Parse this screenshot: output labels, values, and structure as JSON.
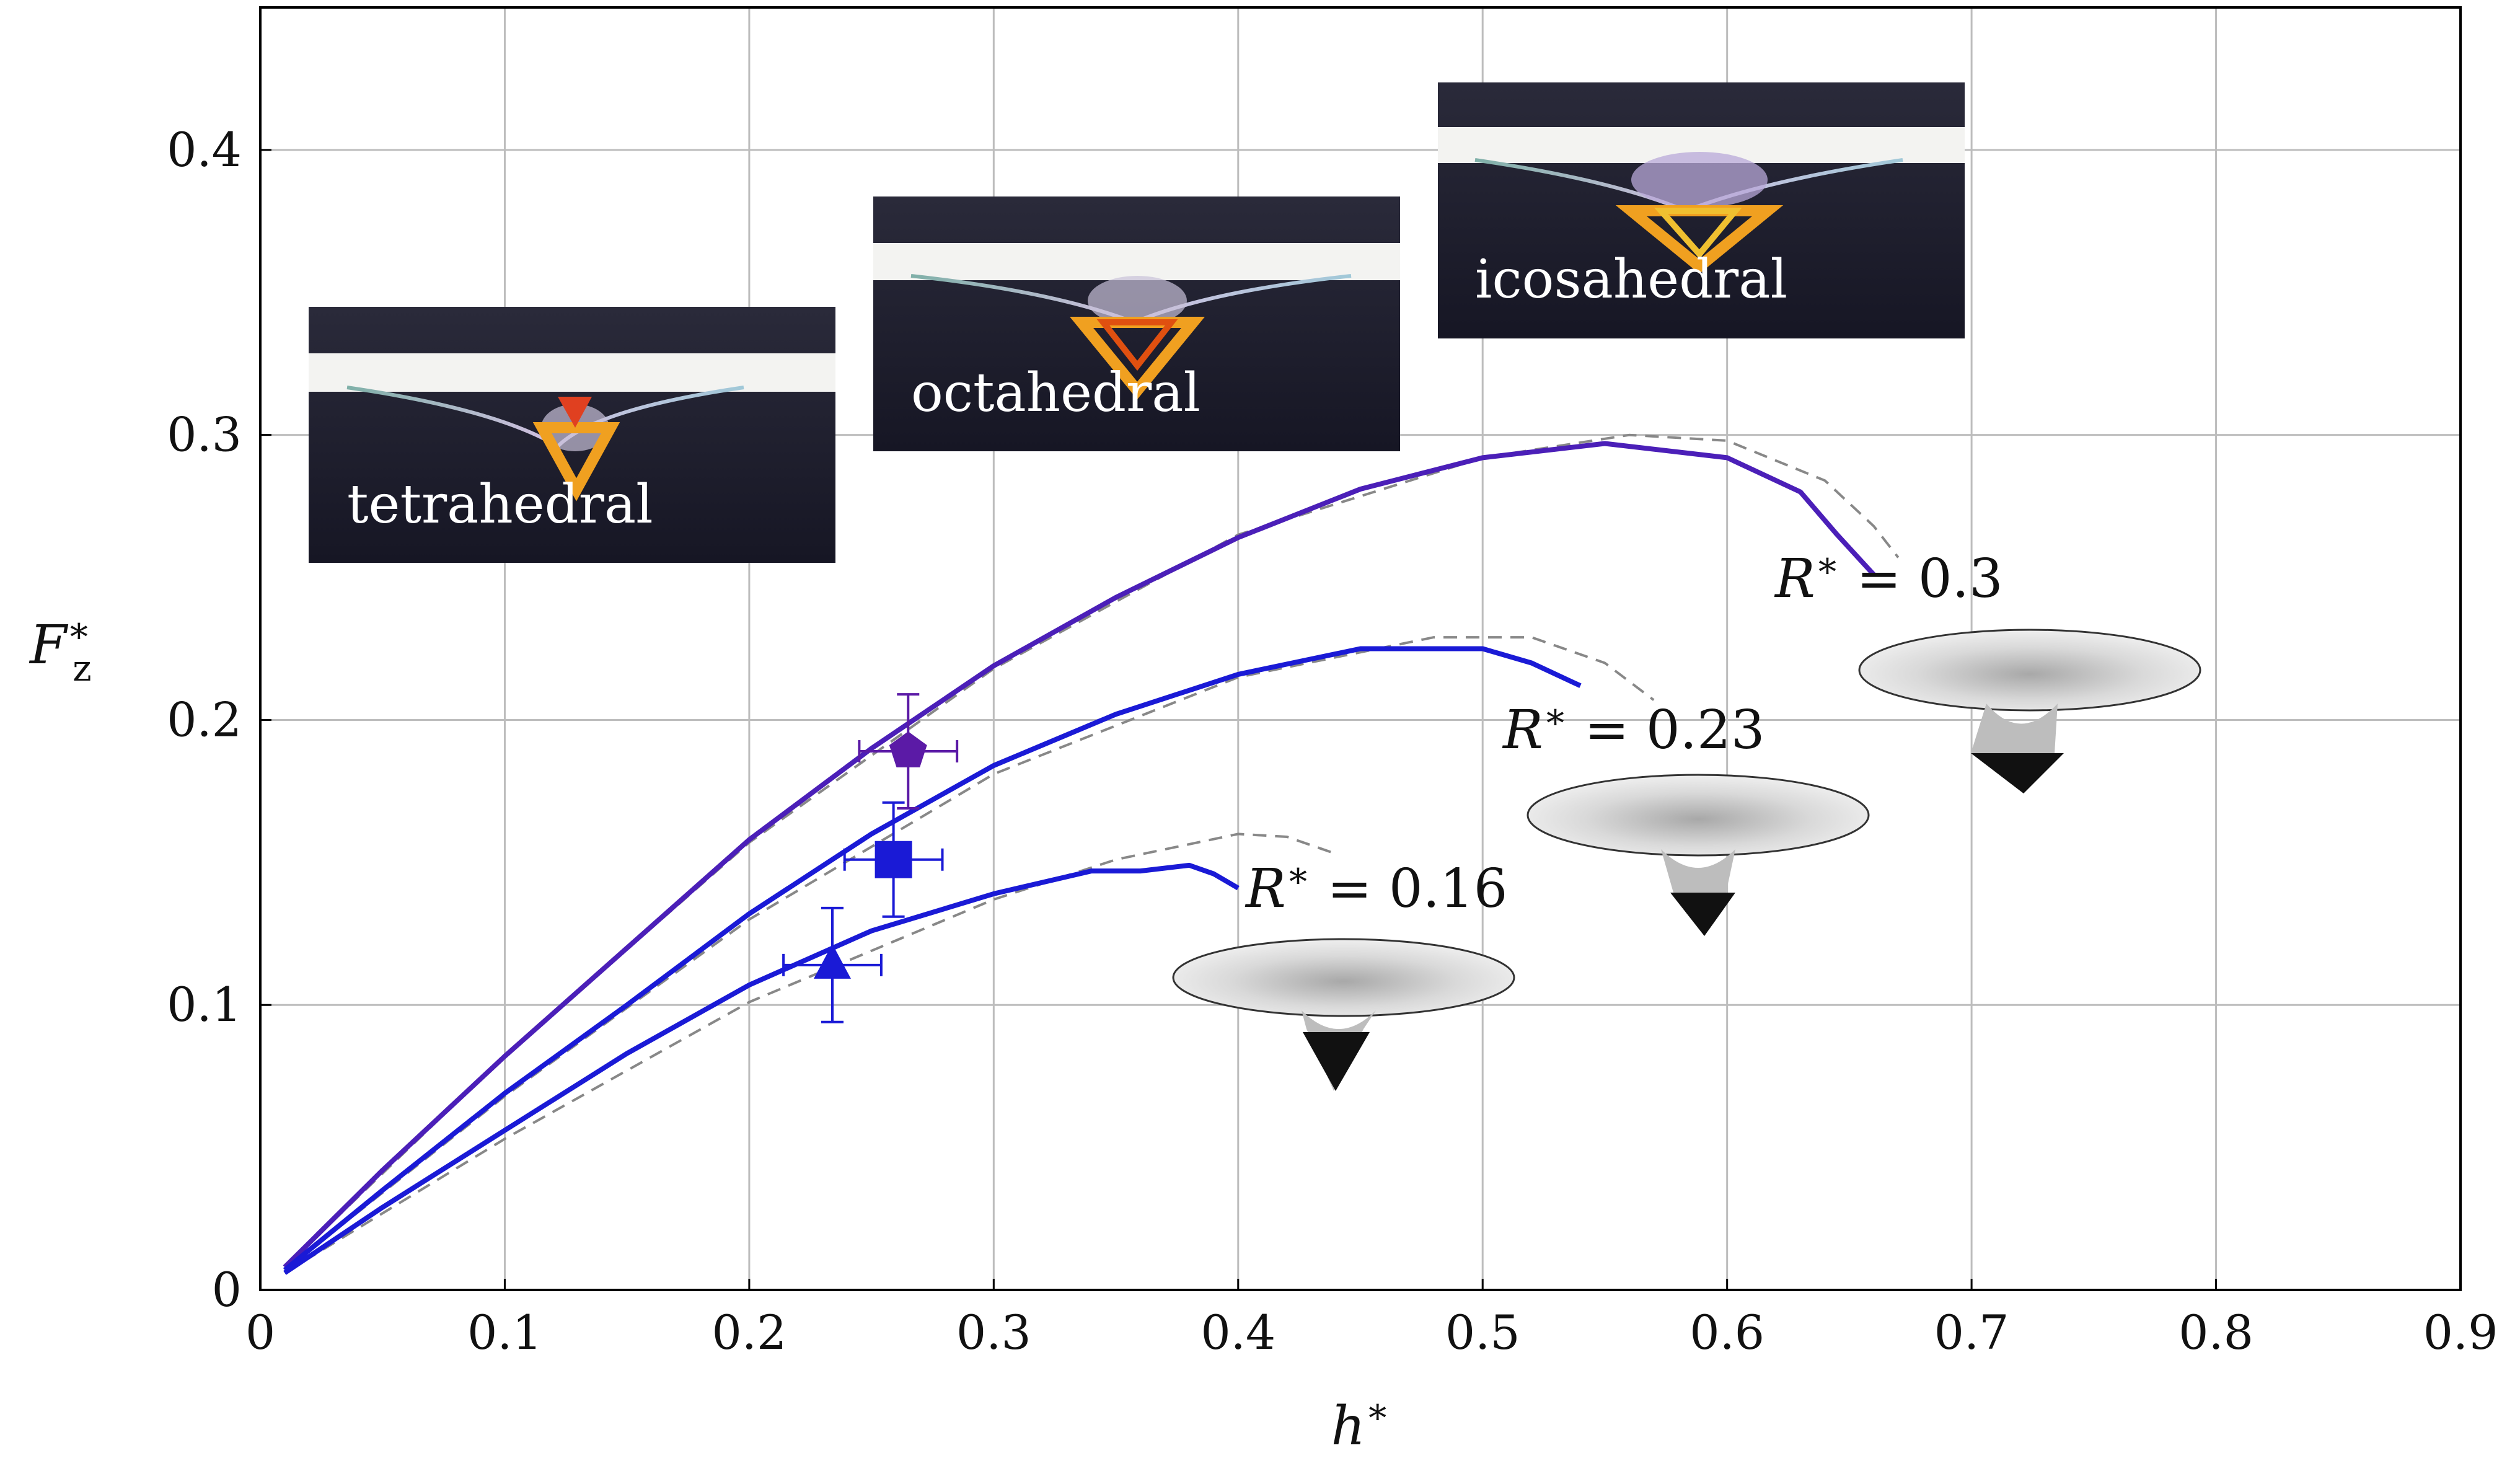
{
  "chart_data": {
    "type": "line",
    "xlabel": "h*",
    "ylabel": "F*z",
    "xlim": [
      0,
      0.9
    ],
    "ylim": [
      0,
      0.45
    ],
    "xticks": [
      "0",
      "0.1",
      "0.2",
      "0.3",
      "0.4",
      "0.5",
      "0.6",
      "0.7",
      "0.8",
      "0.9"
    ],
    "yticks": [
      "0",
      "0.1",
      "0.2",
      "0.3",
      "0.4"
    ],
    "grid": true,
    "series": [
      {
        "name": "R* = 0.3",
        "label_main": "R",
        "label_rest": " = 0.3",
        "color": "#4b1fb8",
        "x": [
          0.01,
          0.05,
          0.1,
          0.15,
          0.2,
          0.25,
          0.3,
          0.35,
          0.4,
          0.45,
          0.5,
          0.55,
          0.6,
          0.63,
          0.645,
          0.66
        ],
        "y": [
          0.008,
          0.042,
          0.082,
          0.12,
          0.158,
          0.19,
          0.219,
          0.243,
          0.264,
          0.281,
          0.292,
          0.297,
          0.292,
          0.28,
          0.265,
          0.251
        ]
      },
      {
        "name": "R* = 0.23",
        "label_main": "R",
        "label_rest": " = 0.23",
        "color": "#1a1ad6",
        "x": [
          0.01,
          0.05,
          0.1,
          0.15,
          0.2,
          0.25,
          0.3,
          0.35,
          0.4,
          0.45,
          0.5,
          0.52,
          0.54
        ],
        "y": [
          0.007,
          0.035,
          0.069,
          0.1,
          0.132,
          0.16,
          0.184,
          0.202,
          0.216,
          0.225,
          0.225,
          0.22,
          0.212
        ]
      },
      {
        "name": "R* = 0.16",
        "label_main": "R",
        "label_rest": " = 0.16",
        "color": "#1a1ad6",
        "x": [
          0.01,
          0.05,
          0.1,
          0.15,
          0.2,
          0.25,
          0.3,
          0.34,
          0.36,
          0.38,
          0.39,
          0.4
        ],
        "y": [
          0.006,
          0.029,
          0.056,
          0.083,
          0.107,
          0.126,
          0.139,
          0.147,
          0.147,
          0.149,
          0.146,
          0.141
        ]
      }
    ],
    "model_series": [
      {
        "color": "#888888",
        "x": [
          0.01,
          0.1,
          0.2,
          0.3,
          0.4,
          0.5,
          0.56,
          0.6,
          0.64,
          0.66,
          0.67
        ],
        "y": [
          0.008,
          0.082,
          0.157,
          0.218,
          0.265,
          0.292,
          0.3,
          0.298,
          0.284,
          0.268,
          0.257
        ]
      },
      {
        "color": "#888888",
        "x": [
          0.01,
          0.1,
          0.2,
          0.3,
          0.4,
          0.48,
          0.52,
          0.55,
          0.57
        ],
        "y": [
          0.007,
          0.068,
          0.13,
          0.181,
          0.215,
          0.229,
          0.229,
          0.22,
          0.207
        ]
      },
      {
        "color": "#888888",
        "x": [
          0.01,
          0.1,
          0.2,
          0.3,
          0.35,
          0.4,
          0.42,
          0.44
        ],
        "y": [
          0.006,
          0.053,
          0.101,
          0.137,
          0.151,
          0.16,
          0.159,
          0.153
        ]
      }
    ],
    "experimental_points": [
      {
        "marker": "pentagon",
        "color": "#5b1aa6",
        "x": 0.265,
        "y": 0.189,
        "xerr": 0.02,
        "yerr": 0.02
      },
      {
        "marker": "square",
        "color": "#1a1ad6",
        "x": 0.259,
        "y": 0.151,
        "xerr": 0.02,
        "yerr": 0.02
      },
      {
        "marker": "triangle",
        "color": "#1a1ad6",
        "x": 0.234,
        "y": 0.114,
        "xerr": 0.02,
        "yerr": 0.02
      }
    ],
    "photo_labels": [
      "tetrahedral",
      "octahedral",
      "icosahedral"
    ]
  }
}
